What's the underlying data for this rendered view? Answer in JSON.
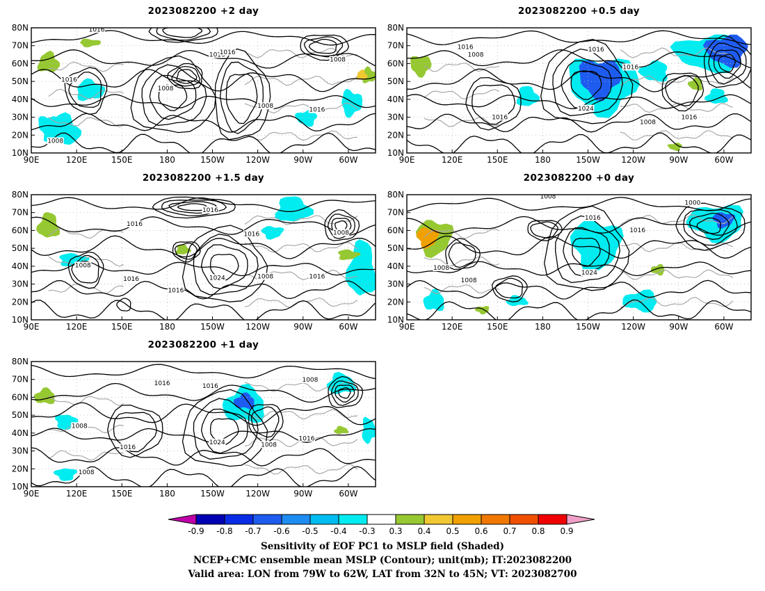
{
  "panels": [
    {
      "id": "p1",
      "title": "2023082200  +2  day"
    },
    {
      "id": "p2",
      "title": "2023082200  +0.5  day"
    },
    {
      "id": "p3",
      "title": "2023082200  +1.5  day"
    },
    {
      "id": "p4",
      "title": "2023082200  +0  day"
    },
    {
      "id": "p5",
      "title": "2023082200  +1  day"
    }
  ],
  "axes": {
    "x_ticks": [
      "90E",
      "120E",
      "150E",
      "180",
      "150W",
      "120W",
      "90W",
      "60W"
    ],
    "y_ticks": [
      "80N",
      "70N",
      "60N",
      "50N",
      "40N",
      "30N",
      "20N",
      "10N"
    ]
  },
  "contour_labels": {
    "p1": [
      "1016",
      "1016",
      "1016",
      "1008",
      "1016",
      "1008",
      "1008",
      "1016",
      "1008"
    ],
    "p2": [
      "1016",
      "1008",
      "1016",
      "1016",
      "1024",
      "1016",
      "1008",
      "1016"
    ],
    "p3": [
      "1016",
      "1016",
      "1008",
      "1016",
      "1008",
      "1016",
      "1024",
      "1008",
      "1016",
      "1016"
    ],
    "p4": [
      "1008",
      "1000",
      "1016",
      "1016",
      "1008",
      "1008",
      "1024"
    ],
    "p5": [
      "1016",
      "1016",
      "1008",
      "1008",
      "1016",
      "1024",
      "1008",
      "1016",
      "1008"
    ]
  },
  "colorbar": {
    "labels": [
      "-0.9",
      "-0.8",
      "-0.7",
      "-0.6",
      "-0.5",
      "-0.4",
      "-0.3",
      "0.3",
      "0.4",
      "0.5",
      "0.6",
      "0.7",
      "0.8",
      "0.9"
    ],
    "colors": {
      "low_arrow": "#c000a8",
      "bins": [
        "#0000b4",
        "#0a2ce6",
        "#1e5cf0",
        "#1e8cf0",
        "#00bcf0",
        "#00ecf0",
        "#ffffff",
        "#96c832",
        "#f0c832",
        "#f0a000",
        "#f07800",
        "#f05000",
        "#f00000"
      ],
      "high_arrow": "#f0a0c8"
    }
  },
  "footer": {
    "line1": "Sensitivity of EOF PC1 to MSLP field (Shaded)",
    "line2": "NCEP+CMC ensemble mean MSLP (Contour); unit(mb); IT:2023082200",
    "line3": "Valid area: LON from 79W to 62W, LAT from 32N to 45N; VT: 2023082700"
  }
}
